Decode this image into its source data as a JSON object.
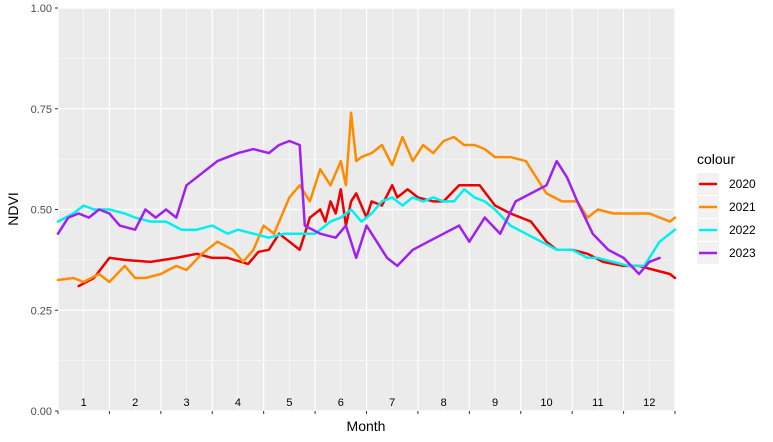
{
  "chart_data": {
    "type": "line",
    "title": "",
    "xlabel": "Month",
    "ylabel": "NDVI",
    "ylim": [
      0,
      1
    ],
    "xlim": [
      0.5,
      12.5
    ],
    "y_ticks": [
      "0.00",
      "0.25",
      "0.50",
      "0.75",
      "1.00"
    ],
    "y_tick_values": [
      0,
      0.25,
      0.5,
      0.75,
      1
    ],
    "month_labels": [
      "1",
      "2",
      "3",
      "4",
      "5",
      "6",
      "7",
      "8",
      "9",
      "10",
      "11",
      "12"
    ],
    "grid": true,
    "legend_title": "colour",
    "legend_position": "right",
    "series": [
      {
        "name": "2020",
        "color": "#ee0000",
        "x": [
          0.9,
          1.2,
          1.5,
          1.8,
          2.3,
          2.8,
          3.2,
          3.5,
          3.8,
          4.2,
          4.4,
          4.6,
          4.8,
          5.0,
          5.2,
          5.4,
          5.6,
          5.7,
          5.8,
          5.9,
          6.0,
          6.1,
          6.2,
          6.3,
          6.5,
          6.6,
          6.8,
          7.0,
          7.1,
          7.3,
          7.5,
          7.8,
          8.0,
          8.3,
          8.7,
          9.0,
          9.3,
          9.7,
          10.0,
          10.2,
          10.5,
          10.8,
          11.1,
          11.5,
          11.8,
          12.1,
          12.4,
          12.5
        ],
        "y": [
          0.31,
          0.33,
          0.38,
          0.375,
          0.37,
          0.38,
          0.39,
          0.38,
          0.38,
          0.365,
          0.395,
          0.4,
          0.44,
          0.42,
          0.4,
          0.48,
          0.5,
          0.47,
          0.52,
          0.49,
          0.55,
          0.46,
          0.52,
          0.54,
          0.48,
          0.52,
          0.51,
          0.56,
          0.53,
          0.55,
          0.53,
          0.52,
          0.52,
          0.56,
          0.56,
          0.51,
          0.49,
          0.47,
          0.42,
          0.4,
          0.4,
          0.39,
          0.37,
          0.36,
          0.36,
          0.35,
          0.34,
          0.33
        ]
      },
      {
        "name": "2021",
        "color": "#ff8c00",
        "x": [
          0.5,
          0.8,
          1.0,
          1.3,
          1.5,
          1.8,
          2.0,
          2.2,
          2.5,
          2.8,
          3.0,
          3.3,
          3.6,
          3.9,
          4.1,
          4.3,
          4.5,
          4.7,
          5.0,
          5.2,
          5.4,
          5.6,
          5.8,
          6.0,
          6.1,
          6.2,
          6.3,
          6.4,
          6.6,
          6.8,
          7.0,
          7.2,
          7.4,
          7.6,
          7.8,
          8.0,
          8.2,
          8.4,
          8.6,
          8.8,
          9.0,
          9.3,
          9.6,
          9.8,
          10.0,
          10.3,
          10.6,
          10.8,
          11.0,
          11.3,
          11.6,
          12.0,
          12.4,
          12.5
        ],
        "y": [
          0.325,
          0.33,
          0.32,
          0.34,
          0.32,
          0.36,
          0.33,
          0.33,
          0.34,
          0.36,
          0.35,
          0.39,
          0.42,
          0.4,
          0.37,
          0.4,
          0.46,
          0.44,
          0.53,
          0.56,
          0.52,
          0.6,
          0.56,
          0.62,
          0.56,
          0.74,
          0.62,
          0.63,
          0.64,
          0.66,
          0.61,
          0.68,
          0.62,
          0.66,
          0.64,
          0.67,
          0.68,
          0.66,
          0.66,
          0.65,
          0.63,
          0.63,
          0.62,
          0.58,
          0.54,
          0.52,
          0.52,
          0.48,
          0.5,
          0.49,
          0.49,
          0.49,
          0.47,
          0.48
        ]
      },
      {
        "name": "2022",
        "color": "#00f0f0",
        "x": [
          0.5,
          0.8,
          1.0,
          1.2,
          1.5,
          1.8,
          2.0,
          2.3,
          2.6,
          2.9,
          3.2,
          3.5,
          3.8,
          4.0,
          4.3,
          4.6,
          4.9,
          5.2,
          5.5,
          5.8,
          6.0,
          6.2,
          6.4,
          6.6,
          6.8,
          7.0,
          7.2,
          7.4,
          7.6,
          7.8,
          8.0,
          8.2,
          8.4,
          8.6,
          8.8,
          9.0,
          9.3,
          9.6,
          9.9,
          10.2,
          10.5,
          10.8,
          11.0,
          11.3,
          11.6,
          11.9,
          12.2,
          12.5
        ],
        "y": [
          0.47,
          0.49,
          0.51,
          0.5,
          0.5,
          0.49,
          0.48,
          0.47,
          0.47,
          0.45,
          0.45,
          0.46,
          0.44,
          0.45,
          0.44,
          0.43,
          0.44,
          0.44,
          0.44,
          0.47,
          0.48,
          0.5,
          0.47,
          0.49,
          0.52,
          0.53,
          0.51,
          0.53,
          0.52,
          0.53,
          0.52,
          0.52,
          0.55,
          0.53,
          0.52,
          0.5,
          0.46,
          0.44,
          0.42,
          0.4,
          0.4,
          0.38,
          0.38,
          0.37,
          0.36,
          0.36,
          0.42,
          0.45
        ]
      },
      {
        "name": "2023",
        "color": "#a020f0",
        "x": [
          0.5,
          0.7,
          0.9,
          1.1,
          1.3,
          1.5,
          1.7,
          2.0,
          2.2,
          2.4,
          2.6,
          2.8,
          3.0,
          3.3,
          3.6,
          4.0,
          4.3,
          4.6,
          4.8,
          5.0,
          5.2,
          5.3,
          5.6,
          5.9,
          6.1,
          6.3,
          6.5,
          6.7,
          6.9,
          7.1,
          7.4,
          7.7,
          8.0,
          8.3,
          8.5,
          8.8,
          9.1,
          9.4,
          9.7,
          10.0,
          10.2,
          10.4,
          10.6,
          10.9,
          11.2,
          11.5,
          11.8,
          12.0,
          12.2
        ],
        "y": [
          0.44,
          0.48,
          0.49,
          0.48,
          0.5,
          0.49,
          0.46,
          0.45,
          0.5,
          0.48,
          0.5,
          0.48,
          0.56,
          0.59,
          0.62,
          0.64,
          0.65,
          0.64,
          0.66,
          0.67,
          0.66,
          0.46,
          0.44,
          0.43,
          0.46,
          0.38,
          0.46,
          0.42,
          0.38,
          0.36,
          0.4,
          0.42,
          0.44,
          0.46,
          0.42,
          0.48,
          0.44,
          0.52,
          0.54,
          0.56,
          0.62,
          0.58,
          0.52,
          0.44,
          0.4,
          0.38,
          0.34,
          0.37,
          0.38
        ]
      }
    ]
  }
}
